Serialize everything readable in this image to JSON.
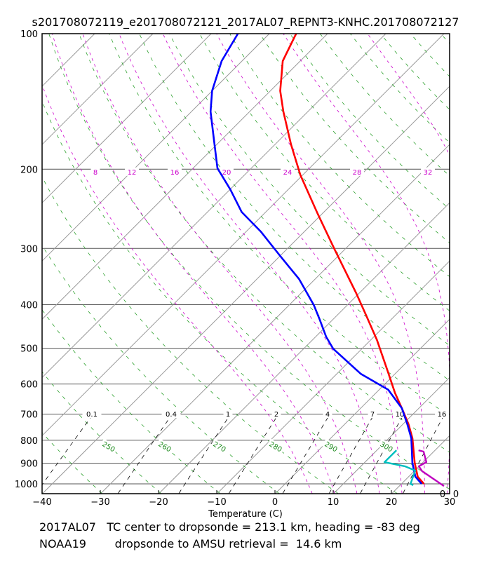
{
  "title": "s201708072119_e201708072121_2017AL07_REPNT3-KNHC.201708072127",
  "info": {
    "line1": "2017AL07   TC center to dropsonde = 213.1 km, heading = -83 deg",
    "line2": "NOAA19        dropsonde to AMSU retrieval =  14.6 km"
  },
  "chart_data": {
    "type": "line",
    "subtype": "skew-T log-P",
    "title": "s201708072119_e201708072121_2017AL07_REPNT3-KNHC.201708072127",
    "xlabel": "Temperature (C)",
    "ylabel": "",
    "xlim": [
      -40,
      30
    ],
    "ylim": [
      1050,
      100
    ],
    "x_ticks": [
      -40,
      -30,
      -20,
      -10,
      0,
      10,
      20,
      30
    ],
    "y_ticks": [
      100,
      200,
      300,
      400,
      500,
      600,
      700,
      800,
      900,
      1000
    ],
    "dry_adiabat_labels": [
      "250",
      "260",
      "270",
      "280",
      "290",
      "300"
    ],
    "moist_adiabat_labels": [
      "8",
      "12",
      "16",
      "20",
      "24",
      "28",
      "32"
    ],
    "mixing_ratio_labels": [
      "0.1",
      "0.4",
      "1",
      "2",
      "4",
      "7",
      "10",
      "16"
    ],
    "corner_labels": [
      "0",
      "0"
    ],
    "colors": {
      "temperature": "#ff0000",
      "dewpoint": "#0000ff",
      "series3": "#00bfbf",
      "series4": "#bf00bf",
      "dry": "#2ca02c",
      "moist": "#cc00cc",
      "isotherm": "#999999",
      "mixing": "#000000"
    },
    "series": [
      {
        "name": "temperature",
        "p": [
          100,
          115,
          134,
          149,
          176,
          206,
          251,
          301,
          377,
          423,
          479,
          563,
          628,
          679,
          737,
          792,
          898,
          964,
          1000
        ],
        "t": [
          -75.4,
          -73.0,
          -68.3,
          -64.2,
          -57.3,
          -50.4,
          -40.8,
          -31.8,
          -20.5,
          -14.9,
          -8.9,
          -1.6,
          3.3,
          7.1,
          11.0,
          14.1,
          18.7,
          21.6,
          23.9
        ]
      },
      {
        "name": "dewpoint",
        "p": [
          100,
          115,
          134,
          149,
          172,
          199,
          222,
          249,
          275,
          312,
          351,
          401,
          430,
          471,
          501,
          570,
          618,
          679,
          737,
          792,
          898,
          964,
          1000
        ],
        "t": [
          -85.4,
          -83.5,
          -80.0,
          -76.7,
          -71.3,
          -65.8,
          -59.9,
          -54.1,
          -47.5,
          -39.9,
          -32.7,
          -25.7,
          -22.4,
          -18.2,
          -14.9,
          -5.8,
          1.6,
          7.1,
          10.8,
          13.9,
          18.3,
          21.2,
          23.5
        ]
      },
      {
        "name": "series3",
        "p": [
          842,
          895,
          914,
          934,
          1000,
          1007
        ],
        "t": [
          13.4,
          13.4,
          17.6,
          20.1,
          21.6,
          22.3
        ]
      },
      {
        "name": "series4",
        "p": [
          842,
          848,
          895,
          914,
          937,
          1011
        ],
        "t": [
          17.2,
          18.3,
          20.6,
          20.0,
          21.4,
          27.7
        ]
      }
    ]
  }
}
